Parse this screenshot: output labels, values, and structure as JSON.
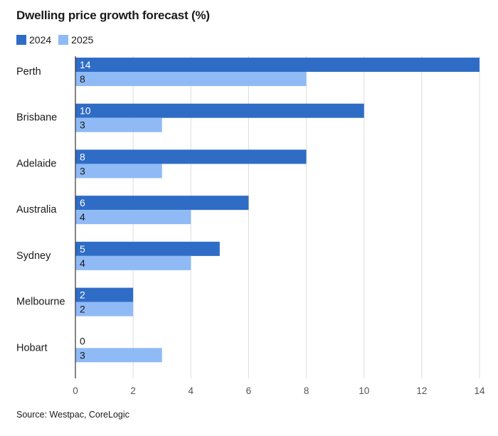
{
  "chart_data": {
    "type": "bar",
    "orientation": "horizontal",
    "title": "Dwelling price growth forecast (%)",
    "categories": [
      "Perth",
      "Brisbane",
      "Adelaide",
      "Australia",
      "Sydney",
      "Melbourne",
      "Hobart"
    ],
    "series": [
      {
        "name": "2024",
        "values": [
          14,
          10,
          8,
          6,
          5,
          2,
          0
        ],
        "color": "#2f6cc6",
        "label_color": "#ffffff"
      },
      {
        "name": "2025",
        "values": [
          8,
          3,
          3,
          4,
          4,
          2,
          3
        ],
        "color": "#8fbaf5",
        "label_color": "#1a1a1a"
      }
    ],
    "xlim": [
      0,
      14
    ],
    "xticks": [
      0,
      2,
      4,
      6,
      8,
      10,
      12,
      14
    ],
    "grid": true,
    "legend_position": "top-left",
    "source": "Source: Westpac, CoreLogic"
  }
}
